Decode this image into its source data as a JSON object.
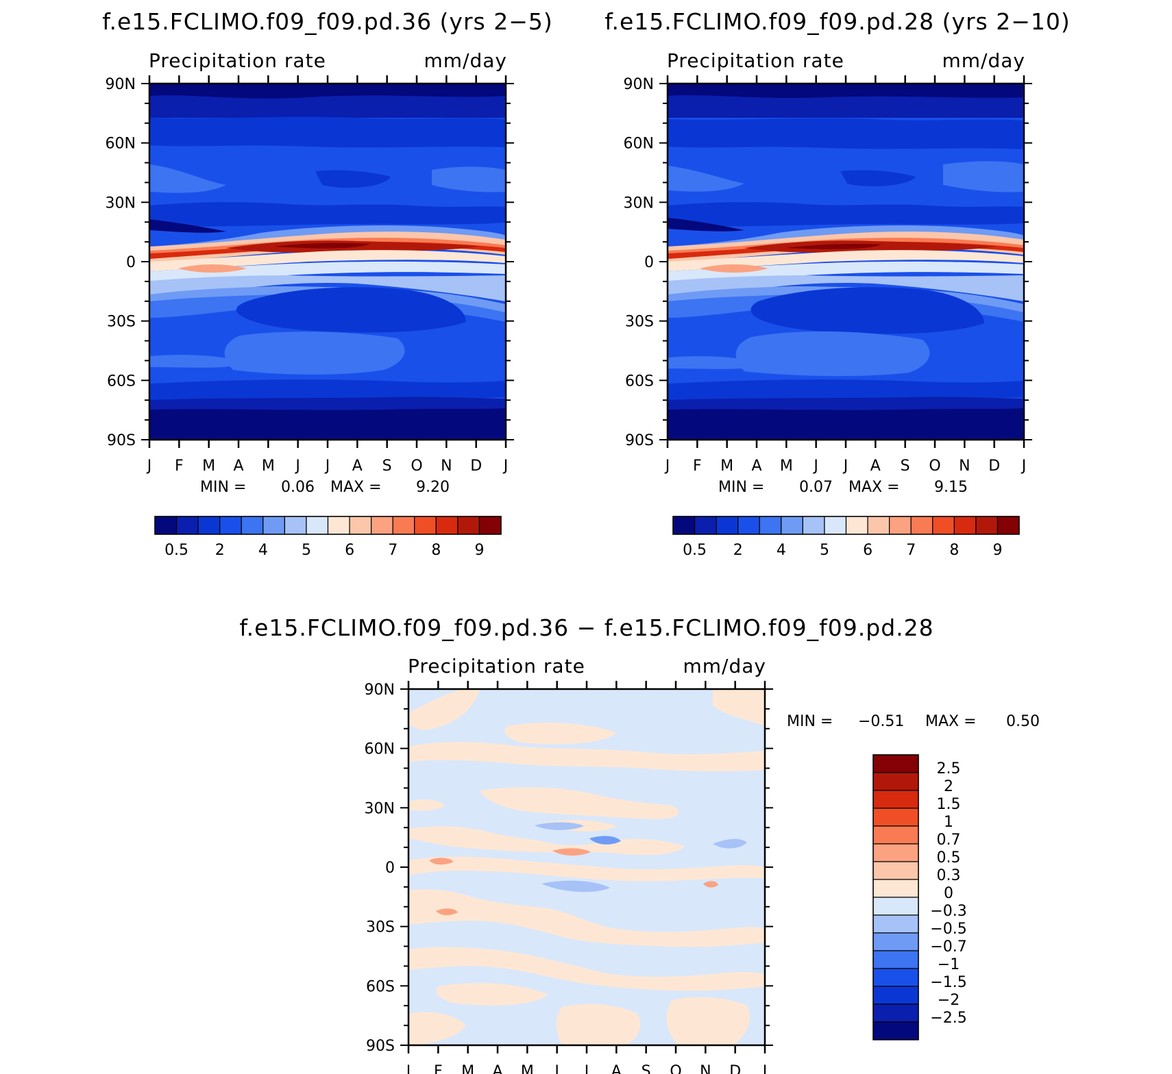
{
  "chart_data": [
    {
      "type": "heatmap",
      "title": "f.e15.FCLIMO.f09_f09.pd.36 (yrs 2−5)",
      "left_label": "Precipitation rate",
      "right_label": "mm/day",
      "x_ticks": [
        "J",
        "F",
        "M",
        "A",
        "M",
        "J",
        "J",
        "A",
        "S",
        "O",
        "N",
        "D",
        "J"
      ],
      "y_ticks": [
        "90N",
        "60N",
        "30N",
        "0",
        "30S",
        "60S",
        "90S"
      ],
      "ylim": [
        -90,
        90
      ],
      "stats": {
        "min_label": "MIN =",
        "min": "0.06",
        "max_label": "MAX =",
        "max": "9.20"
      },
      "colorbar": {
        "orientation": "horizontal",
        "colors": [
          "#03087d",
          "#0a1fae",
          "#0a37d4",
          "#1a50ea",
          "#3c74f2",
          "#6f9bf4",
          "#a6c2f7",
          "#d9e7fb",
          "#fde7d4",
          "#fcc6aa",
          "#fba281",
          "#f97b54",
          "#f04f25",
          "#d72a0e",
          "#b2180a",
          "#830004"
        ],
        "labels": [
          "0.5",
          "2",
          "4",
          "5",
          "6",
          "7",
          "8",
          "9"
        ]
      }
    },
    {
      "type": "heatmap",
      "title": "f.e15.FCLIMO.f09_f09.pd.28 (yrs 2−10)",
      "left_label": "Precipitation rate",
      "right_label": "mm/day",
      "x_ticks": [
        "J",
        "F",
        "M",
        "A",
        "M",
        "J",
        "J",
        "A",
        "S",
        "O",
        "N",
        "D",
        "J"
      ],
      "y_ticks": [
        "90N",
        "60N",
        "30N",
        "0",
        "30S",
        "60S",
        "90S"
      ],
      "ylim": [
        -90,
        90
      ],
      "stats": {
        "min_label": "MIN =",
        "min": "0.07",
        "max_label": "MAX =",
        "max": "9.15"
      },
      "colorbar": {
        "orientation": "horizontal",
        "colors": [
          "#03087d",
          "#0a1fae",
          "#0a37d4",
          "#1a50ea",
          "#3c74f2",
          "#6f9bf4",
          "#a6c2f7",
          "#d9e7fb",
          "#fde7d4",
          "#fcc6aa",
          "#fba281",
          "#f97b54",
          "#f04f25",
          "#d72a0e",
          "#b2180a",
          "#830004"
        ],
        "labels": [
          "0.5",
          "2",
          "4",
          "5",
          "6",
          "7",
          "8",
          "9"
        ]
      }
    },
    {
      "type": "heatmap",
      "title": "f.e15.FCLIMO.f09_f09.pd.36 − f.e15.FCLIMO.f09_f09.pd.28",
      "left_label": "Precipitation rate",
      "right_label": "mm/day",
      "x_ticks": [
        "J",
        "F",
        "M",
        "A",
        "M",
        "J",
        "J",
        "A",
        "S",
        "O",
        "N",
        "D",
        "J"
      ],
      "y_ticks": [
        "90N",
        "60N",
        "30N",
        "0",
        "30S",
        "60S",
        "90S"
      ],
      "ylim": [
        -90,
        90
      ],
      "stats": {
        "min_label": "MIN =",
        "min": "−0.51",
        "max_label": "MAX =",
        "max": "0.50"
      },
      "colorbar": {
        "orientation": "vertical",
        "colors_top_to_bottom": [
          "#830004",
          "#b2180a",
          "#d72a0e",
          "#f04f25",
          "#f97b54",
          "#fba281",
          "#fcc6aa",
          "#fde7d4",
          "#d9e7fb",
          "#a6c2f7",
          "#6f9bf4",
          "#3c74f2",
          "#1a50ea",
          "#0a37d4",
          "#0a1fae",
          "#03087d"
        ],
        "labels_top_to_bottom": [
          "2.5",
          "2",
          "1.5",
          "1",
          "0.7",
          "0.5",
          "0.3",
          "0",
          "−0.3",
          "−0.5",
          "−0.7",
          "−1",
          "−1.5",
          "−2",
          "−2.5"
        ]
      }
    }
  ]
}
